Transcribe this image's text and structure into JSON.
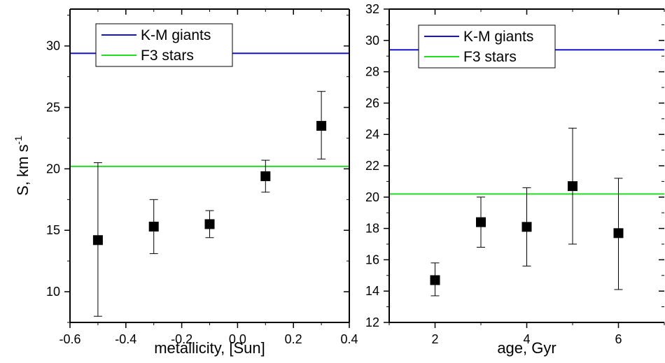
{
  "colors": {
    "km_giants": "#1414c8",
    "f3_stars": "#22dd22",
    "points": "#000000",
    "axes": "#000000"
  },
  "chart_data": [
    {
      "type": "scatter",
      "xlabel": "metallicity, [Sun]",
      "ylabel_main": "S, km s",
      "ylabel_sup": "-1",
      "xlim": [
        -0.6,
        0.4
      ],
      "ylim": [
        7.5,
        33
      ],
      "xticks": [
        -0.6,
        -0.4,
        -0.2,
        0.0,
        0.2,
        0.4
      ],
      "xtick_labels": [
        "-0.6",
        "-0.4",
        "-0.2",
        "0.0",
        "0.2",
        "0.4"
      ],
      "yticks": [
        10,
        15,
        20,
        25,
        30
      ],
      "ytick_labels": [
        "10",
        "15",
        "20",
        "25",
        "30"
      ],
      "legend_position": "top",
      "reference_lines": [
        {
          "name": "K-M giants",
          "y": 29.4,
          "color": "#1414c8"
        },
        {
          "name": "F3 stars",
          "y": 20.2,
          "color": "#22dd22"
        }
      ],
      "series": [
        {
          "x": [
            -0.5,
            -0.3,
            -0.1,
            0.1,
            0.3
          ],
          "y": [
            14.2,
            15.3,
            15.5,
            19.4,
            23.5
          ],
          "err_low": [
            6.2,
            2.2,
            1.1,
            1.3,
            2.7
          ],
          "err_high": [
            6.3,
            2.2,
            1.1,
            1.3,
            2.8
          ]
        }
      ]
    },
    {
      "type": "scatter",
      "xlabel": "age, Gyr",
      "xlim": [
        1,
        7
      ],
      "ylim": [
        12,
        32
      ],
      "xticks": [
        2,
        4,
        6
      ],
      "xtick_labels": [
        "2",
        "4",
        "6"
      ],
      "yticks": [
        12,
        14,
        16,
        18,
        20,
        22,
        24,
        26,
        28,
        30,
        32
      ],
      "ytick_labels": [
        "12",
        "14",
        "16",
        "18",
        "20",
        "22",
        "24",
        "26",
        "28",
        "30",
        "32"
      ],
      "legend_position": "top",
      "reference_lines": [
        {
          "name": "K-M giants",
          "y": 29.4,
          "color": "#1414c8"
        },
        {
          "name": "F3 stars",
          "y": 20.2,
          "color": "#22dd22"
        }
      ],
      "series": [
        {
          "x": [
            2,
            3,
            4,
            5,
            6
          ],
          "y": [
            14.7,
            18.4,
            18.1,
            20.7,
            17.7
          ],
          "err_low": [
            1.0,
            1.6,
            2.5,
            3.7,
            3.6
          ],
          "err_high": [
            1.1,
            1.6,
            2.5,
            3.7,
            3.5
          ]
        }
      ]
    }
  ]
}
